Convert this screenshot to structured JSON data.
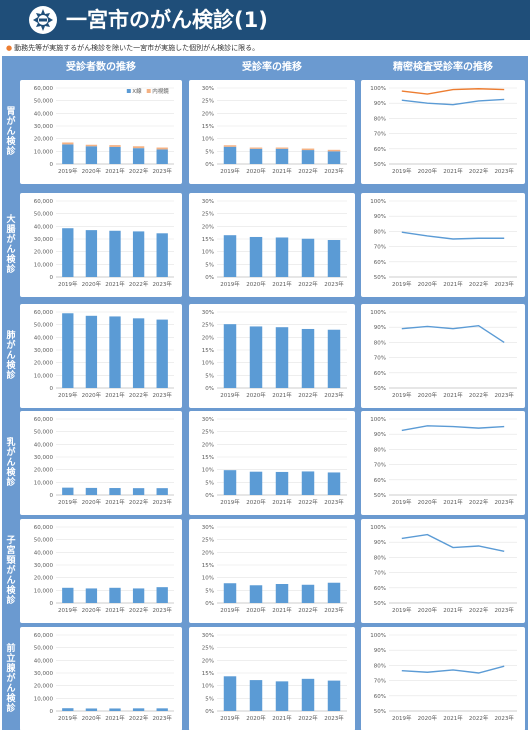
{
  "header": {
    "title": "一宮市のがん検診(1)"
  },
  "note": "動務先等が実施するがん検診を除いた一宮市が実施した個別がん検診に限る。",
  "column_headers": [
    "受診者数の推移",
    "受診率の推移",
    "精密検査受診率の推移"
  ],
  "colors": {
    "bar_main": "#5b9bd5",
    "bar_secondary": "#f4b183",
    "line_main": "#5b9bd5",
    "line_secondary": "#ed7d31",
    "frame": "#6b9ad0",
    "header": "#1f4e79"
  },
  "chart_data": [
    {
      "label": "胃がん検診",
      "count": {
        "type": "bar",
        "stacked": true,
        "categories": [
          "2019年",
          "2020年",
          "2021年",
          "2022年",
          "2023年"
        ],
        "ylim": [
          0,
          60000
        ],
        "yticks": [
          "0",
          "10,000",
          "20,000",
          "30,000",
          "40,000",
          "50,000",
          "60,000"
        ],
        "legend": [
          "X線",
          "内視鏡"
        ],
        "series": [
          {
            "name": "X線",
            "values": [
              15500,
              14000,
              13500,
              12500,
              11500
            ]
          },
          {
            "name": "内視鏡",
            "values": [
              1500,
              1200,
              1400,
              1500,
              1500
            ]
          }
        ]
      },
      "rate": {
        "type": "bar",
        "stacked": true,
        "categories": [
          "2019年",
          "2020年",
          "2021年",
          "2022年",
          "2023年"
        ],
        "ylim": [
          0,
          30
        ],
        "yticks": [
          "0%",
          "5%",
          "10%",
          "15%",
          "20%",
          "25%",
          "30%"
        ],
        "series": [
          {
            "values": [
              6.8,
              6.0,
              6.0,
              5.5,
              5.0
            ]
          },
          {
            "values": [
              0.6,
              0.5,
              0.5,
              0.6,
              0.6
            ]
          }
        ]
      },
      "followup": {
        "type": "line",
        "categories": [
          "2019年",
          "2020年",
          "2021年",
          "2022年",
          "2023年"
        ],
        "ylim": [
          50,
          100
        ],
        "yticks": [
          "50%",
          "60%",
          "70%",
          "80%",
          "90%",
          "100%"
        ],
        "series": [
          {
            "values": [
              92,
              90,
              89,
              91.5,
              92.5
            ]
          },
          {
            "values": [
              98,
              96,
              99,
              99.5,
              99
            ]
          }
        ]
      }
    },
    {
      "label": "大腸がん検診",
      "count": {
        "type": "bar",
        "categories": [
          "2019年",
          "2020年",
          "2021年",
          "2022年",
          "2023年"
        ],
        "ylim": [
          0,
          60000
        ],
        "yticks": [
          "0",
          "10,000",
          "20,000",
          "30,000",
          "40,000",
          "50,000",
          "60,000"
        ],
        "series": [
          {
            "values": [
              38500,
              37000,
              36500,
              36000,
              34500
            ]
          }
        ]
      },
      "rate": {
        "type": "bar",
        "categories": [
          "2019年",
          "2020年",
          "2021年",
          "2022年",
          "2023年"
        ],
        "ylim": [
          0,
          30
        ],
        "yticks": [
          "0%",
          "5%",
          "10%",
          "15%",
          "20%",
          "25%",
          "30%"
        ],
        "series": [
          {
            "values": [
              16.5,
              15.8,
              15.6,
              15.1,
              14.6
            ]
          }
        ]
      },
      "followup": {
        "type": "line",
        "categories": [
          "2019年",
          "2020年",
          "2021年",
          "2022年",
          "2023年"
        ],
        "ylim": [
          50,
          100
        ],
        "yticks": [
          "50%",
          "60%",
          "70%",
          "80%",
          "90%",
          "100%"
        ],
        "series": [
          {
            "values": [
              79.5,
              77,
              75,
              75.5,
              75.5
            ]
          }
        ]
      }
    },
    {
      "label": "肺がん検診",
      "count": {
        "type": "bar",
        "categories": [
          "2019年",
          "2020年",
          "2021年",
          "2022年",
          "2023年"
        ],
        "ylim": [
          0,
          60000
        ],
        "yticks": [
          "0",
          "10,000",
          "20,000",
          "30,000",
          "40,000",
          "50,000",
          "60,000"
        ],
        "series": [
          {
            "values": [
              59000,
              57000,
              56500,
              55000,
              54000
            ]
          }
        ]
      },
      "rate": {
        "type": "bar",
        "categories": [
          "2019年",
          "2020年",
          "2021年",
          "2022年",
          "2023年"
        ],
        "ylim": [
          0,
          30
        ],
        "yticks": [
          "0%",
          "5%",
          "10%",
          "15%",
          "20%",
          "25%",
          "30%"
        ],
        "series": [
          {
            "values": [
              25.2,
              24.3,
              24.0,
              23.3,
              23.0
            ]
          }
        ]
      },
      "followup": {
        "type": "line",
        "categories": [
          "2019年",
          "2020年",
          "2021年",
          "2022年",
          "2023年"
        ],
        "ylim": [
          50,
          100
        ],
        "yticks": [
          "50%",
          "60%",
          "70%",
          "80%",
          "90%",
          "100%"
        ],
        "series": [
          {
            "values": [
              89,
              90.5,
              89,
              91,
              80
            ]
          }
        ]
      }
    },
    {
      "label": "乳がん検診",
      "count": {
        "type": "bar",
        "categories": [
          "2019年",
          "2020年",
          "2021年",
          "2022年",
          "2023年"
        ],
        "ylim": [
          0,
          60000
        ],
        "yticks": [
          "0",
          "10,000",
          "20,000",
          "30,000",
          "40,000",
          "50,000",
          "60,000"
        ],
        "series": [
          {
            "values": [
              5800,
              5600,
              5500,
              5400,
              5400
            ]
          }
        ]
      },
      "rate": {
        "type": "bar",
        "categories": [
          "2019年",
          "2020年",
          "2021年",
          "2022年",
          "2023年"
        ],
        "ylim": [
          0,
          30
        ],
        "yticks": [
          "0%",
          "5%",
          "10%",
          "15%",
          "20%",
          "25%",
          "30%"
        ],
        "series": [
          {
            "values": [
              9.8,
              9.2,
              9.1,
              9.3,
              8.9
            ]
          }
        ]
      },
      "followup": {
        "type": "line",
        "categories": [
          "2019年",
          "2020年",
          "2021年",
          "2022年",
          "2023年"
        ],
        "ylim": [
          50,
          100
        ],
        "yticks": [
          "50%",
          "60%",
          "70%",
          "80%",
          "90%",
          "100%"
        ],
        "series": [
          {
            "values": [
              92.5,
              95.5,
              95,
              94,
              95
            ]
          }
        ]
      }
    },
    {
      "label": "子宮頸がん検診",
      "count": {
        "type": "bar",
        "categories": [
          "2019年",
          "2020年",
          "2021年",
          "2022年",
          "2023年"
        ],
        "ylim": [
          0,
          60000
        ],
        "yticks": [
          "0",
          "10,000",
          "20,000",
          "30,000",
          "40,000",
          "50,000",
          "60,000"
        ],
        "series": [
          {
            "values": [
              12000,
              11500,
              12000,
              11500,
              12500
            ]
          }
        ]
      },
      "rate": {
        "type": "bar",
        "categories": [
          "2019年",
          "2020年",
          "2021年",
          "2022年",
          "2023年"
        ],
        "ylim": [
          0,
          30
        ],
        "yticks": [
          "0%",
          "5%",
          "10%",
          "15%",
          "20%",
          "25%",
          "30%"
        ],
        "series": [
          {
            "values": [
              7.8,
              7.0,
              7.5,
              7.2,
              8.0
            ]
          }
        ]
      },
      "followup": {
        "type": "line",
        "categories": [
          "2019年",
          "2020年",
          "2021年",
          "2022年",
          "2023年"
        ],
        "ylim": [
          50,
          100
        ],
        "yticks": [
          "50%",
          "60%",
          "70%",
          "80%",
          "90%",
          "100%"
        ],
        "series": [
          {
            "values": [
              92.5,
              95,
              86.5,
              87.5,
              84
            ]
          }
        ]
      }
    },
    {
      "label": "前立腺がん検診",
      "count": {
        "type": "bar",
        "categories": [
          "2019年",
          "2020年",
          "2021年",
          "2022年",
          "2023年"
        ],
        "ylim": [
          0,
          60000
        ],
        "yticks": [
          "0",
          "10,000",
          "20,000",
          "30,000",
          "40,000",
          "50,000",
          "60,000"
        ],
        "series": [
          {
            "values": [
              2200,
              2000,
              2000,
              2100,
              2100
            ]
          }
        ]
      },
      "rate": {
        "type": "bar",
        "categories": [
          "2019年",
          "2020年",
          "2021年",
          "2022年",
          "2023年"
        ],
        "ylim": [
          0,
          30
        ],
        "yticks": [
          "0%",
          "5%",
          "10%",
          "15%",
          "20%",
          "25%",
          "30%"
        ],
        "series": [
          {
            "values": [
              13.7,
              12.2,
              11.7,
              12.7,
              12.0
            ]
          }
        ]
      },
      "followup": {
        "type": "line",
        "categories": [
          "2019年",
          "2020年",
          "2021年",
          "2022年",
          "2023年"
        ],
        "ylim": [
          50,
          100
        ],
        "yticks": [
          "50%",
          "60%",
          "70%",
          "80%",
          "90%",
          "100%"
        ],
        "series": [
          {
            "values": [
              76.5,
              75.5,
              77,
              75,
              79.5
            ]
          }
        ]
      }
    }
  ]
}
